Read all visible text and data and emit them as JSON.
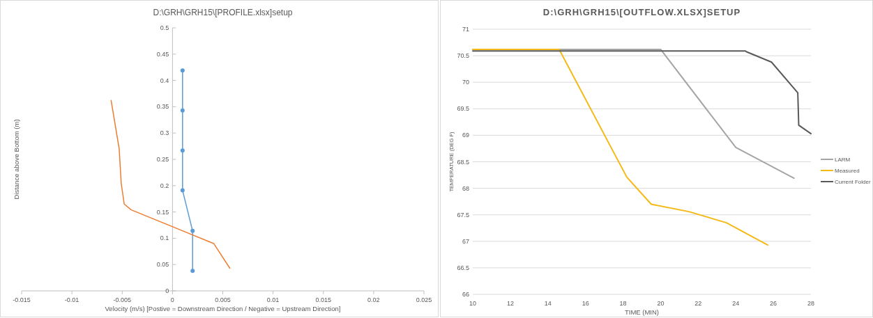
{
  "chart_data": [
    {
      "type": "line",
      "title": "D:\\GRH\\GRH15\\[PROFILE.xlsx]setup",
      "xlabel": "Velocity (m/s) [Postive = Downstream Direction / Negative = Upstream Direction]",
      "ylabel": "Distance above Bottom (m)",
      "xlim": [
        -0.015,
        0.025
      ],
      "xticks": [
        -0.015,
        -0.01,
        -0.005,
        0,
        0.005,
        0.01,
        0.015,
        0.02,
        0.025
      ],
      "ylim": [
        0,
        0.5
      ],
      "yticks": [
        0,
        0.05,
        0.1,
        0.15,
        0.2,
        0.25,
        0.3,
        0.35,
        0.4,
        0.45,
        0.5
      ],
      "grid": false,
      "legend": false,
      "series": [
        {
          "color": "#5b9bd5",
          "marker": "circle",
          "x": [
            0.001,
            0.001,
            0.001,
            0.001,
            0.002,
            0.002
          ],
          "values": [
            0.419,
            0.343,
            0.267,
            0.191,
            0.114,
            0.038
          ]
        },
        {
          "color": "#ed7d31",
          "marker": "none",
          "x": [
            -0.0061,
            -0.0053,
            -0.0051,
            -0.0048,
            -0.0041,
            0.0041,
            0.0057
          ],
          "values": [
            0.362,
            0.27,
            0.205,
            0.165,
            0.154,
            0.09,
            0.043
          ]
        }
      ]
    },
    {
      "type": "line",
      "title": "D:\\GRH\\GRH15\\[OUTFLOW.XLSX]SETUP",
      "xlabel": "TIME (MIN)",
      "ylabel": "TEMPERATURE (DEG F)",
      "xlim": [
        10,
        28
      ],
      "xticks": [
        10,
        12,
        14,
        16,
        18,
        20,
        22,
        24,
        26,
        28
      ],
      "ylim": [
        66,
        71
      ],
      "yticks": [
        66,
        66.5,
        67,
        67.5,
        68,
        68.5,
        69,
        69.5,
        70,
        70.5,
        71
      ],
      "grid": "y",
      "legend": "right",
      "series": [
        {
          "name": "LARM",
          "color": "#a5a5a5",
          "marker": "none",
          "x": [
            10,
            20,
            24,
            27.1
          ],
          "values": [
            70.62,
            70.62,
            68.77,
            68.19
          ]
        },
        {
          "name": "Measured",
          "color": "#f5b915",
          "marker": "none",
          "x": [
            10,
            14.6,
            18.2,
            19.5,
            21.5,
            23.5,
            25.7
          ],
          "values": [
            70.62,
            70.62,
            68.21,
            67.7,
            67.56,
            67.35,
            66.93
          ]
        },
        {
          "name": "Current Folder",
          "color": "#595959",
          "marker": "none",
          "x": [
            10,
            24.5,
            24.6,
            25.9,
            27.3,
            27.35,
            28
          ],
          "values": [
            70.59,
            70.59,
            70.57,
            70.38,
            69.8,
            69.19,
            69.03
          ]
        }
      ]
    }
  ]
}
